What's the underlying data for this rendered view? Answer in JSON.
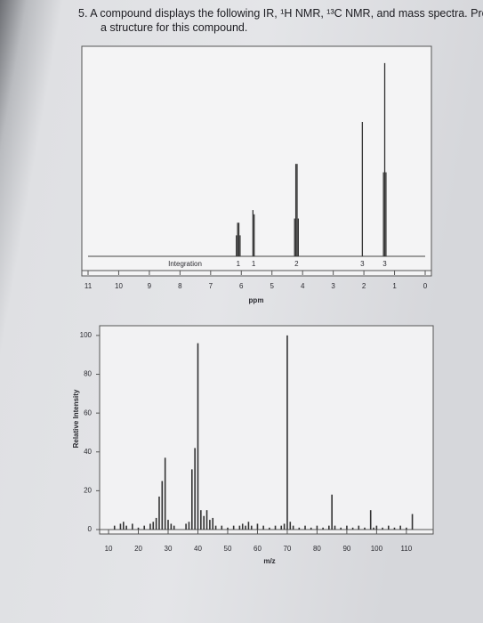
{
  "question": [
    "5. A compound displays the following IR, ¹H NMR, ¹³C NMR, and mass spectra. Propose",
    "a structure for this compound."
  ],
  "chart_data": [
    {
      "type": "stick",
      "xlabel": "ppm",
      "xlim": [
        11,
        0
      ],
      "xticks": [
        11,
        10,
        9,
        8,
        7,
        6,
        5,
        4,
        3,
        2,
        1,
        0
      ],
      "ylim": [
        0,
        100
      ],
      "x": [
        6.16,
        6.12,
        6.08,
        6.04,
        5.62,
        5.58,
        4.26,
        4.22,
        4.18,
        4.14,
        2.05,
        1.36,
        1.32,
        1.28
      ],
      "values": [
        10,
        16,
        16,
        10,
        22,
        20,
        18,
        44,
        44,
        18,
        64,
        40,
        92,
        40
      ],
      "integration": {
        "label": "Integration",
        "x": [
          6.1,
          5.6,
          4.2,
          2.05,
          1.32
        ],
        "values": [
          1,
          1,
          2,
          3,
          3
        ]
      }
    },
    {
      "type": "stick",
      "xlabel": "m/z",
      "ylabel": "Relative Intensity",
      "xlim": [
        7,
        119
      ],
      "ylim": [
        0,
        105
      ],
      "xticks": [
        10,
        20,
        30,
        40,
        50,
        60,
        70,
        80,
        90,
        100,
        110
      ],
      "yticks": [
        0,
        20,
        40,
        60,
        80,
        100
      ],
      "x": [
        12,
        14,
        15,
        16,
        18,
        20,
        22,
        24,
        25,
        26,
        27,
        28,
        29,
        30,
        31,
        32,
        36,
        37,
        38,
        39,
        40,
        41,
        42,
        43,
        44,
        45,
        46,
        48,
        50,
        52,
        54,
        55,
        56,
        57,
        58,
        60,
        62,
        64,
        66,
        68,
        69,
        70,
        71,
        72,
        74,
        76,
        78,
        80,
        82,
        84,
        85,
        86,
        88,
        90,
        92,
        94,
        96,
        98,
        99,
        100,
        102,
        104,
        106,
        108,
        110,
        112
      ],
      "values": [
        2,
        3,
        4,
        2,
        3,
        1,
        2,
        3,
        4,
        6,
        17,
        25,
        37,
        5,
        3,
        2,
        3,
        4,
        31,
        42,
        96,
        10,
        7,
        10,
        5,
        6,
        2,
        2,
        1,
        2,
        2,
        3,
        2,
        4,
        2,
        3,
        2,
        1,
        2,
        2,
        3,
        100,
        4,
        2,
        1,
        2,
        1,
        2,
        1,
        2,
        18,
        2,
        1,
        2,
        1,
        2,
        1,
        10,
        1,
        2,
        1,
        2,
        1,
        2,
        1,
        8
      ]
    }
  ]
}
